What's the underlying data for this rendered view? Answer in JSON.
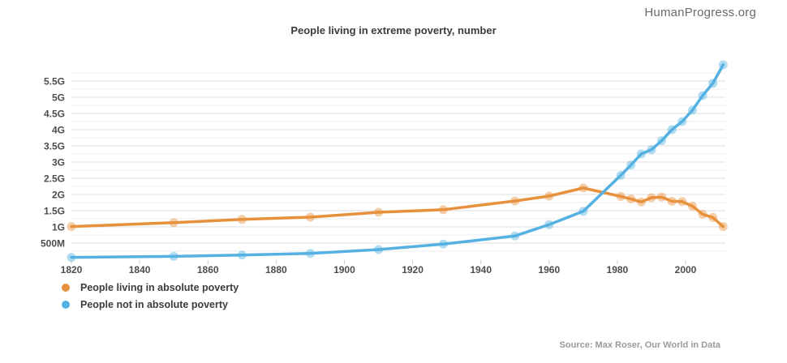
{
  "watermark": "HumanProgress.org",
  "source": "Source: Max Roser, Our World in Data",
  "chart_data": {
    "type": "line",
    "title": "People living in extreme poverty, number",
    "x": [
      1820,
      1850,
      1870,
      1890,
      1910,
      1929,
      1950,
      1960,
      1970,
      1981,
      1984,
      1987,
      1990,
      1993,
      1996,
      1999,
      2002,
      2005,
      2008,
      2011
    ],
    "series": [
      {
        "name": "People living in absolute poverty",
        "color": "#E8913D",
        "values_millions": [
          1010,
          1130,
          1230,
          1300,
          1450,
          1530,
          1800,
          1950,
          2200,
          1940,
          1860,
          1770,
          1900,
          1920,
          1790,
          1780,
          1640,
          1390,
          1290,
          1010
        ]
      },
      {
        "name": "People not in absolute poverty",
        "color": "#55B1E2",
        "values_millions": [
          60,
          90,
          130,
          180,
          300,
          470,
          720,
          1070,
          1480,
          2590,
          2910,
          3250,
          3380,
          3660,
          4000,
          4250,
          4600,
          5050,
          5430,
          6000
        ]
      }
    ],
    "x_ticks": [
      1820,
      1840,
      1860,
      1880,
      1900,
      1920,
      1940,
      1960,
      1980,
      2000
    ],
    "y_ticks": [
      {
        "value": 500,
        "label": "500M"
      },
      {
        "value": 1000,
        "label": "1G"
      },
      {
        "value": 1500,
        "label": "1.5G"
      },
      {
        "value": 2000,
        "label": "2G"
      },
      {
        "value": 2500,
        "label": "2.5G"
      },
      {
        "value": 3000,
        "label": "3G"
      },
      {
        "value": 3500,
        "label": "3.5G"
      },
      {
        "value": 4000,
        "label": "4G"
      },
      {
        "value": 4500,
        "label": "4.5G"
      },
      {
        "value": 5000,
        "label": "5G"
      },
      {
        "value": 5500,
        "label": "5.5G"
      }
    ],
    "units": "people (millions; M = million, G = billion)",
    "xlabel": "",
    "ylabel": "",
    "xlim": [
      1820,
      2012
    ],
    "ylim": [
      0,
      5900
    ],
    "grid": "horizontal minor gridlines every 250M",
    "legend_position": "bottom-left"
  }
}
